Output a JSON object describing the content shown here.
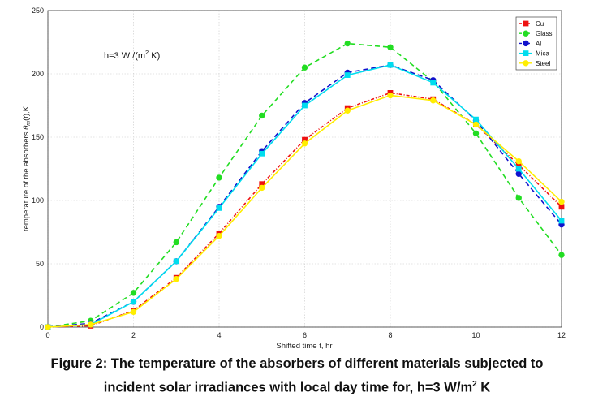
{
  "chart_data": {
    "type": "line",
    "title": "",
    "xlabel": "Shifted time t, hr",
    "ylabel": "temperature of the absorbers θm(t),K",
    "ylabel_main": "temperature of the absorbers  ",
    "ylabel_theta": "θ",
    "ylabel_sub": "m",
    "ylabel_tail": "(t),K",
    "xlim": [
      0,
      12
    ],
    "ylim": [
      0,
      250
    ],
    "xticks": [
      "0",
      "2",
      "4",
      "6",
      "8",
      "10",
      "12"
    ],
    "yticks": [
      "0",
      "50",
      "100",
      "150",
      "200",
      "250"
    ],
    "annotation": {
      "text": "h=3 W /(m",
      "sup": "2",
      "tail": " K)"
    },
    "legend_position": "top-right",
    "x": [
      0,
      1,
      2,
      3,
      4,
      5,
      6,
      7,
      8,
      9,
      10,
      11,
      12
    ],
    "series": [
      {
        "name": "Cu",
        "color": "#ee1111",
        "marker": "square",
        "dash": "4,2,1,2",
        "values": [
          0,
          1,
          13,
          39,
          74,
          113,
          148,
          173,
          185,
          180,
          160,
          128,
          95
        ]
      },
      {
        "name": "Glass",
        "color": "#22dd22",
        "marker": "circle",
        "dash": "6,4",
        "values": [
          0,
          5,
          27,
          67,
          118,
          167,
          205,
          224,
          221,
          194,
          153,
          102,
          57
        ]
      },
      {
        "name": "Al",
        "color": "#1111cc",
        "marker": "circle",
        "dash": "6,4",
        "values": [
          0,
          3,
          20,
          52,
          95,
          139,
          177,
          201,
          207,
          195,
          163,
          121,
          81
        ]
      },
      {
        "name": "Mica",
        "color": "#00ddee",
        "marker": "square",
        "dash": "",
        "values": [
          0,
          2,
          20,
          52,
          94,
          137,
          175,
          199,
          207,
          193,
          164,
          125,
          84
        ]
      },
      {
        "name": "Steel",
        "color": "#ffee00",
        "marker": "circle",
        "dash": "",
        "values": [
          0,
          2,
          12,
          38,
          72,
          110,
          145,
          171,
          183,
          179,
          160,
          131,
          99
        ]
      }
    ]
  },
  "caption": {
    "line1": "Figure 2: The temperature of the absorbers of different materials subjected to",
    "line2_prefix": "incident solar irradiances with local day time for, h=3 W/m",
    "line2_sup": "2",
    "line2_suffix": " K"
  }
}
